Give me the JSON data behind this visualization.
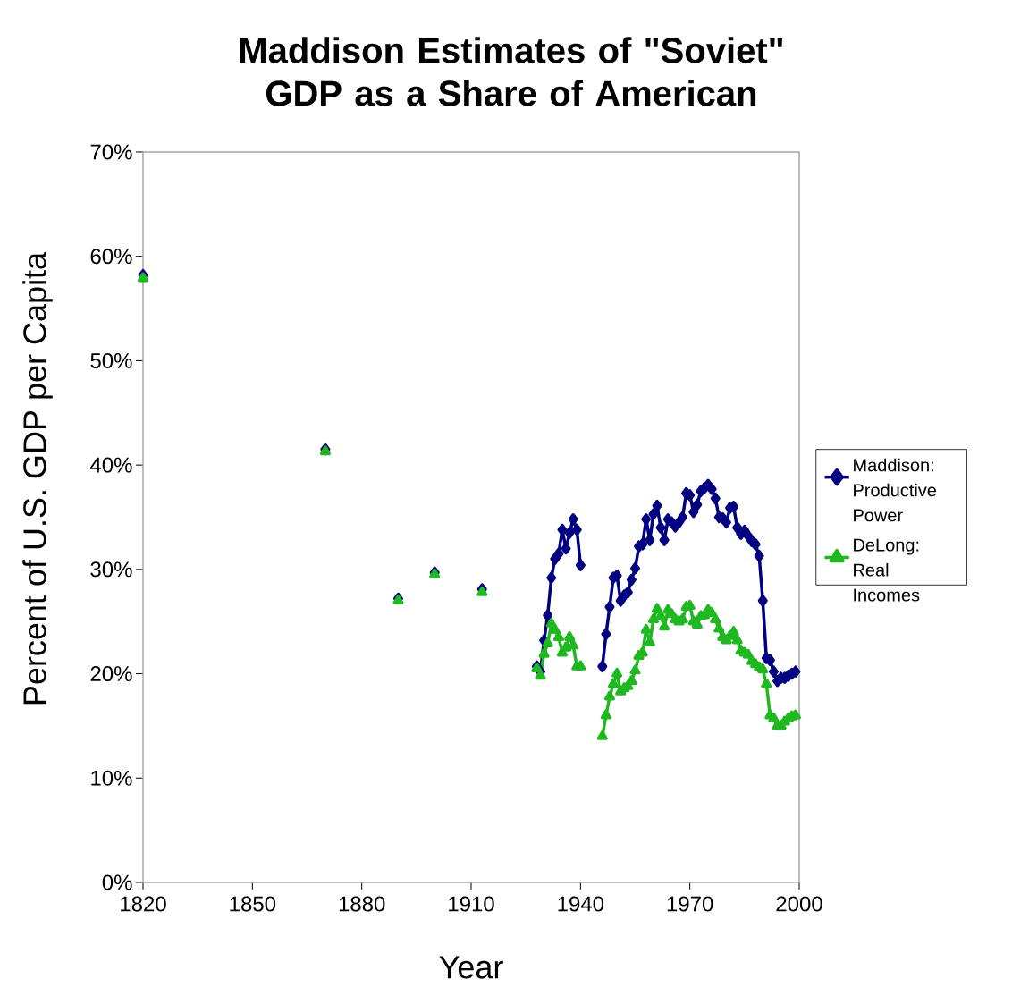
{
  "chart_data": {
    "type": "line",
    "title": "Maddison Estimates of \"Soviet\" GDP as a Share of American",
    "xlabel": "Year",
    "ylabel": "Percent of U.S. GDP per Capita",
    "xlim": [
      1820,
      2000
    ],
    "xticks": [
      1820,
      1850,
      1880,
      1910,
      1940,
      1970,
      2000
    ],
    "ylim": [
      0,
      70
    ],
    "yticks": [
      {
        "value": 0,
        "label": "0%"
      },
      {
        "value": 10,
        "label": "10%"
      },
      {
        "value": 20,
        "label": "20%"
      },
      {
        "value": 30,
        "label": "30%"
      },
      {
        "value": 40,
        "label": "40%"
      },
      {
        "value": 50,
        "label": "50%"
      },
      {
        "value": 60,
        "label": "60%"
      },
      {
        "value": 70,
        "label": "70%"
      }
    ],
    "grid": false,
    "legend": "right",
    "line_style": "solid",
    "x": [
      1820,
      1845,
      1870,
      1880,
      1890,
      1895,
      1900,
      1906,
      1913,
      1920,
      1928,
      1929,
      1930,
      1931,
      1932,
      1933,
      1934,
      1935,
      1936,
      1937,
      1938,
      1939,
      1940,
      1943,
      1946,
      1947,
      1948,
      1949,
      1950,
      1951,
      1952,
      1953,
      1954,
      1955,
      1956,
      1957,
      1958,
      1959,
      1960,
      1961,
      1962,
      1963,
      1964,
      1965,
      1966,
      1967,
      1968,
      1969,
      1970,
      1971,
      1972,
      1973,
      1974,
      1975,
      1976,
      1977,
      1978,
      1979,
      1980,
      1981,
      1982,
      1983,
      1984,
      1985,
      1986,
      1987,
      1988,
      1989,
      1990,
      1991,
      1992,
      1993,
      1994,
      1995,
      1996,
      1997,
      1998,
      1999
    ],
    "series": [
      {
        "name": "Maddison: Productive Power",
        "color": "#000080",
        "marker": "diamond",
        "values": [
          58.2,
          null,
          41.5,
          null,
          27.2,
          null,
          29.7,
          null,
          28.1,
          null,
          20.7,
          20.2,
          23.2,
          25.6,
          29.2,
          31.0,
          31.5,
          33.8,
          32.0,
          33.5,
          34.8,
          33.8,
          30.4,
          null,
          20.7,
          23.8,
          26.4,
          29.2,
          29.4,
          27.0,
          27.5,
          27.8,
          29.0,
          30.1,
          32.2,
          32.4,
          34.8,
          32.8,
          35.3,
          36.1,
          34.0,
          32.8,
          34.8,
          34.5,
          34.1,
          34.5,
          35.0,
          37.3,
          37.1,
          35.5,
          36.2,
          37.5,
          37.8,
          38.1,
          37.7,
          36.8,
          35.0,
          34.9,
          34.5,
          35.9,
          36.0,
          34.0,
          33.4,
          33.7,
          33.2,
          32.7,
          32.4,
          31.3,
          27.0,
          21.5,
          21.3,
          20.2,
          19.3,
          19.6,
          19.6,
          19.8,
          20.0,
          20.2
        ]
      },
      {
        "name": "DeLong: Real Incomes",
        "color": "#20b820",
        "marker": "triangle",
        "values": [
          57.9,
          null,
          41.3,
          null,
          27.0,
          null,
          29.5,
          null,
          27.8,
          null,
          20.5,
          19.8,
          21.9,
          22.9,
          24.8,
          24.2,
          23.5,
          22.0,
          22.5,
          23.5,
          22.7,
          20.7,
          20.7,
          null,
          14.0,
          16.0,
          17.8,
          19.0,
          20.0,
          18.3,
          18.6,
          18.8,
          19.3,
          20.3,
          21.7,
          22.0,
          24.2,
          23.0,
          25.2,
          26.2,
          25.5,
          24.5,
          26.1,
          25.7,
          25.2,
          25.0,
          25.2,
          26.4,
          26.5,
          25.0,
          24.7,
          25.5,
          25.6,
          26.1,
          25.8,
          25.2,
          24.3,
          23.5,
          23.2,
          23.6,
          24.0,
          23.2,
          22.2,
          22.0,
          21.8,
          21.2,
          20.9,
          20.6,
          20.4,
          19.0,
          16.0,
          15.7,
          15.0,
          15.0,
          15.4,
          15.7,
          15.9,
          16.0
        ]
      }
    ]
  }
}
